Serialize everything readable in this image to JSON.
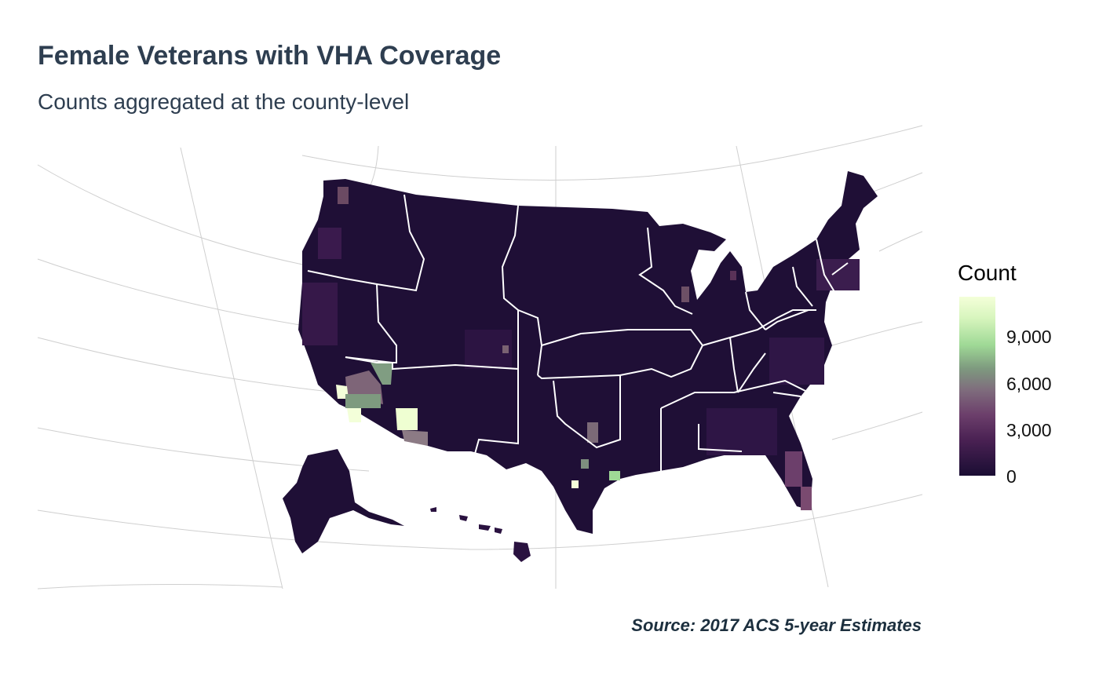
{
  "title": "Female Veterans with VHA Coverage",
  "subtitle": "Counts aggregated at the county-level",
  "legend": {
    "title": "Count",
    "ticks": [
      "9,000",
      "6,000",
      "3,000",
      "0"
    ],
    "range": [
      0,
      11500
    ],
    "colors": [
      "#1a0d33",
      "#4a2153",
      "#7f6d7d",
      "#9fd996",
      "#f4ffd9"
    ]
  },
  "source": "Source: 2017 ACS 5-year Estimates",
  "colors": {
    "text": "#2e3e50",
    "base": "#1f0f36",
    "borders": "#ffffff",
    "graticule": "#c8c8c8"
  }
}
